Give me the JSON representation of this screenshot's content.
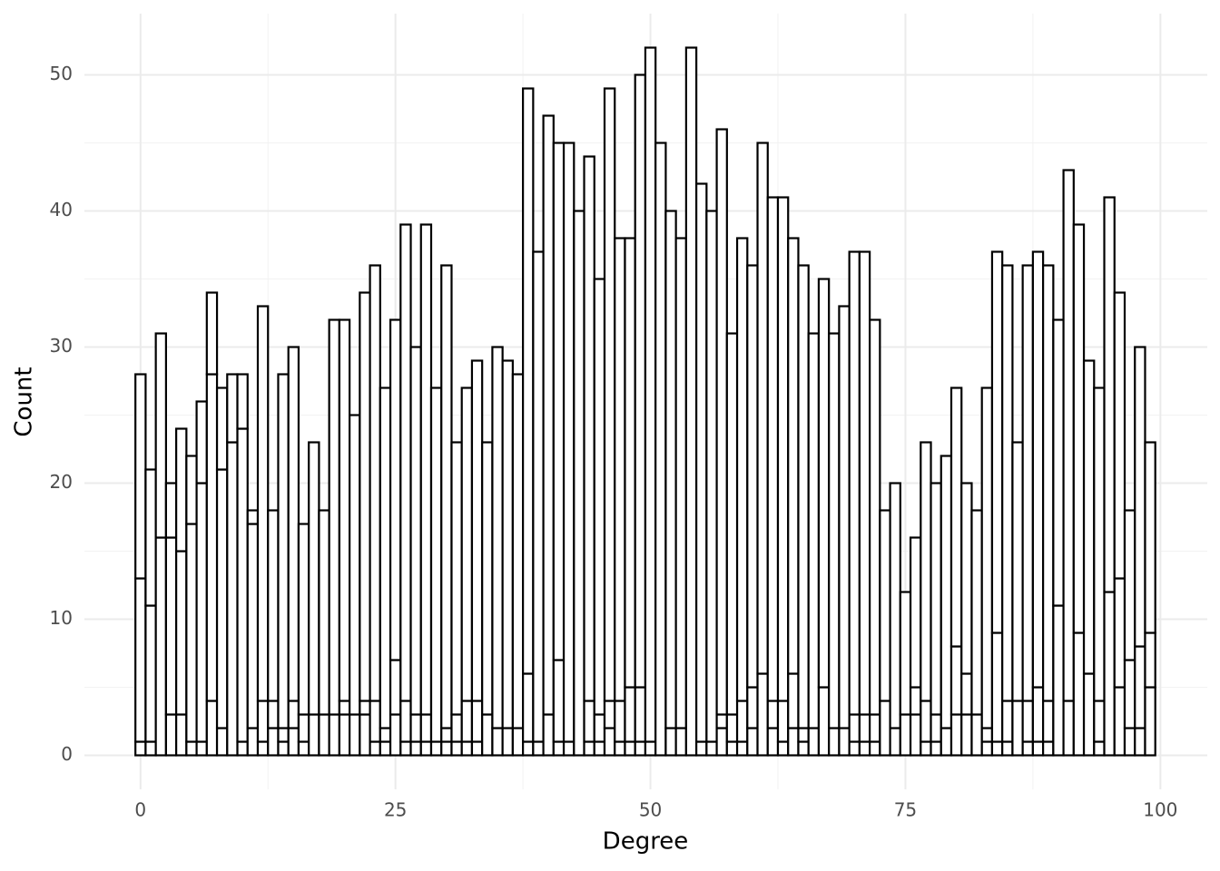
{
  "chart_data": {
    "type": "histogram",
    "xlabel": "Degree",
    "ylabel": "Count",
    "bins": [
      -0.5,
      0.5,
      1.5,
      2.5,
      3.5,
      4.5,
      5.5,
      6.5,
      7.5,
      8.5,
      9.5,
      10.5,
      11.5,
      12.5,
      13.5,
      14.5,
      15.5,
      16.5,
      17.5,
      18.5,
      19.5,
      20.5,
      21.5,
      22.5,
      23.5,
      24.5,
      25.5,
      26.5,
      27.5,
      28.5,
      29.5,
      30.5,
      31.5,
      32.5,
      33.5,
      34.5,
      35.5,
      36.5,
      37.5,
      38.5,
      39.5,
      40.5,
      41.5,
      42.5,
      43.5,
      44.5,
      45.5,
      46.5,
      47.5,
      48.5,
      49.5,
      50.5,
      51.5,
      52.5,
      53.5,
      54.5,
      55.5,
      56.5,
      57.5,
      58.5,
      59.5,
      60.5,
      61.5,
      62.5,
      63.5,
      64.5,
      65.5,
      66.5,
      67.5,
      68.5,
      69.5,
      70.5,
      71.5,
      72.5,
      73.5,
      74.5,
      75.5,
      76.5,
      77.5,
      78.5,
      79.5,
      80.5,
      81.5,
      82.5,
      83.5,
      84.5,
      85.5,
      86.5,
      87.5,
      88.5,
      89.5,
      90.5,
      91.5,
      92.5,
      93.5,
      94.5,
      95.5,
      96.5,
      97.5,
      98.5,
      99.5
    ],
    "series": [
      {
        "color": "#ffffff",
        "values": [
          1,
          1,
          0,
          3,
          3,
          1,
          1,
          4,
          2,
          0,
          1,
          2,
          1,
          2,
          1,
          2,
          1,
          3,
          0,
          0,
          3,
          0,
          3,
          1,
          1,
          3,
          1,
          1,
          1,
          1,
          1,
          1,
          1,
          1,
          0,
          2,
          2,
          2,
          1,
          0,
          0,
          1,
          0,
          0,
          1,
          1,
          2,
          1,
          1,
          1,
          0,
          0,
          2,
          0,
          0,
          0,
          1,
          2,
          1,
          1,
          2,
          0,
          2,
          1,
          2,
          1,
          0,
          0,
          0,
          2,
          1,
          1,
          1,
          0,
          0,
          3,
          3,
          1,
          1,
          0,
          3,
          3,
          0,
          1,
          1,
          1,
          0,
          1,
          1,
          1,
          0,
          0,
          0,
          0,
          1,
          0,
          5,
          2,
          2,
          5
        ]
      },
      {
        "color": "#ffffff",
        "values": [
          12,
          10,
          16,
          13,
          12,
          16,
          19,
          24,
          19,
          23,
          23,
          15,
          3,
          2,
          1,
          2,
          2,
          0,
          3,
          3,
          1,
          3,
          1,
          3,
          1,
          4,
          3,
          2,
          2,
          0,
          1,
          2,
          3,
          3,
          3,
          0,
          0,
          0,
          5,
          1,
          3,
          6,
          1,
          0,
          3,
          2,
          2,
          3,
          4,
          4,
          1,
          0,
          0,
          2,
          0,
          1,
          0,
          1,
          2,
          3,
          3,
          6,
          2,
          3,
          4,
          1,
          2,
          5,
          2,
          0,
          2,
          2,
          2,
          4,
          2,
          0,
          2,
          3,
          2,
          2,
          5,
          3,
          3,
          1,
          8,
          3,
          4,
          3,
          4,
          3,
          11,
          4,
          9,
          6,
          3,
          12,
          8,
          5,
          6,
          4
        ]
      },
      {
        "color": "#ffffff",
        "values": [
          15,
          10,
          15,
          4,
          9,
          5,
          6,
          6,
          6,
          5,
          4,
          1,
          29,
          14,
          26,
          26,
          14,
          20,
          15,
          29,
          28,
          22,
          30,
          32,
          25,
          25,
          35,
          27,
          36,
          26,
          34,
          20,
          23,
          25,
          20,
          28,
          27,
          26,
          43,
          36,
          44,
          38,
          44,
          40,
          40,
          32,
          45,
          34,
          33,
          45,
          51,
          45,
          38,
          36,
          52,
          41,
          39,
          43,
          28,
          34,
          31,
          39,
          37,
          37,
          32,
          34,
          29,
          30,
          29,
          31,
          34,
          34,
          29,
          14,
          18,
          9,
          11,
          19,
          17,
          20,
          19,
          14,
          15,
          25,
          28,
          32,
          19,
          32,
          32,
          32,
          21,
          39,
          30,
          23,
          23,
          29,
          21,
          11,
          22,
          14
        ]
      }
    ],
    "edgecolor": "#000000",
    "xlim": [
      -5.5,
      104.6
    ],
    "ylim": [
      -2.5,
      54.5
    ],
    "xticks": [
      0,
      25,
      50,
      75,
      100
    ],
    "yticks": [
      0,
      10,
      20,
      30,
      40,
      50
    ],
    "grid": true
  }
}
